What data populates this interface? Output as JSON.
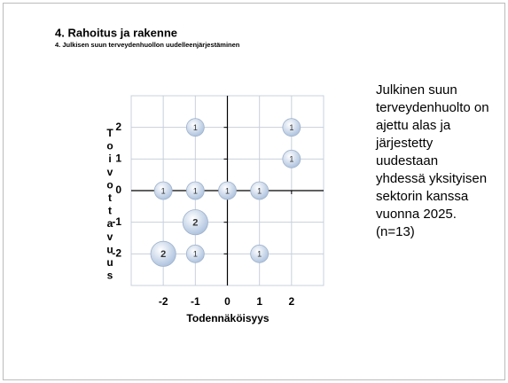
{
  "title": "4. Rahoitus ja rakenne",
  "subtitle": "4. Julkisen suun terveydenhuollon uudelleenjärjestäminen",
  "chart_data": {
    "type": "bubble",
    "x_label": "Todennäköisyys",
    "y_label": "Toivottavuus",
    "x": [
      -1,
      2,
      2,
      -2,
      -1,
      0,
      1,
      -1,
      -2,
      -1,
      1
    ],
    "values": [
      2,
      2,
      1,
      0,
      0,
      0,
      0,
      -1,
      -2,
      -2,
      -2
    ],
    "sizes": [
      1,
      1,
      1,
      1,
      1,
      1,
      1,
      2,
      2,
      1,
      1
    ],
    "color": "#a9bfdc",
    "xlim": [
      -3,
      3
    ],
    "ylim": [
      -3,
      3
    ],
    "xticks": [
      -2,
      -1,
      0,
      1,
      2
    ],
    "yticks": [
      -2,
      -1,
      0,
      1,
      2
    ],
    "grid": true
  },
  "annotation": "Julkinen suun terveydenhuolto on ajettu alas ja järjestetty uudestaan yhdessä yksityisen sektorin kanssa vuonna 2025. (n=13)"
}
